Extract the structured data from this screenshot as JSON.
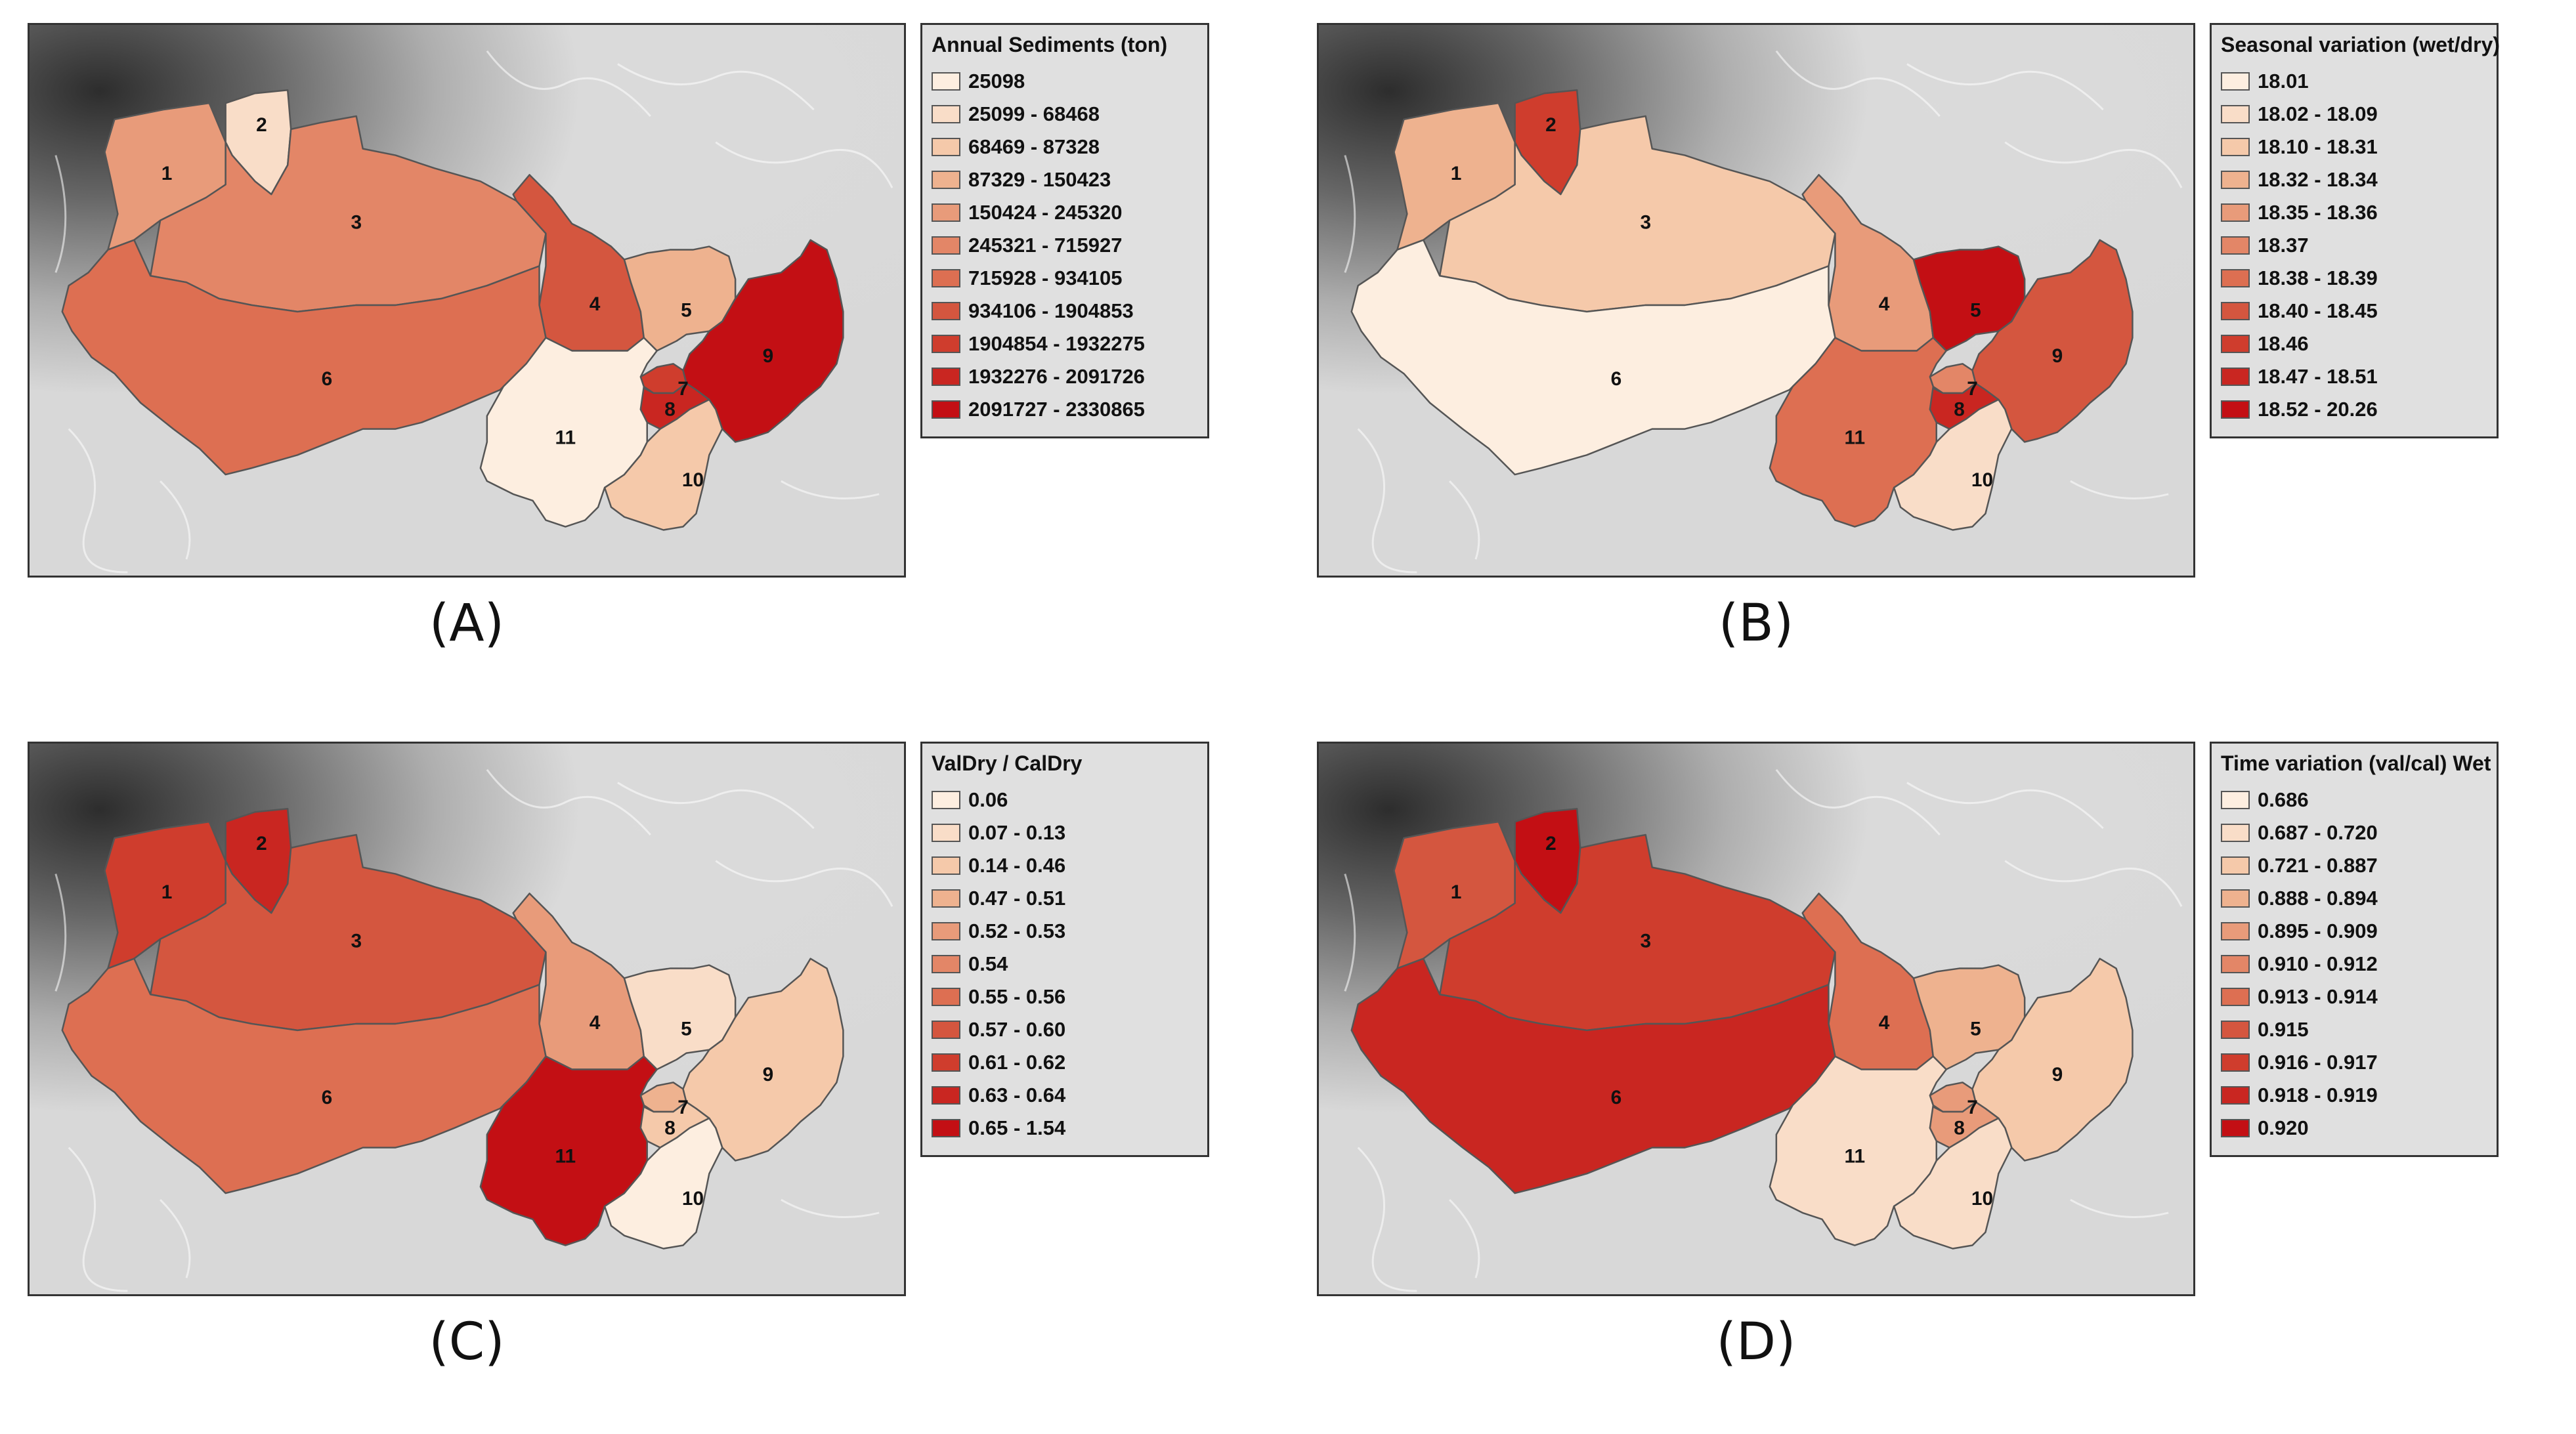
{
  "colors": {
    "c1": "#fdeee0",
    "c2": "#f9ddc8",
    "c3": "#f5c9aa",
    "c4": "#eeb28f",
    "c5": "#e89b7a",
    "c6": "#e38667",
    "c7": "#dd6f52",
    "c8": "#d4563f",
    "c9": "#cf3d2d",
    "c10": "#c92621",
    "c11": "#c30f14"
  },
  "panels": [
    {
      "caption": "(A)",
      "legend_title": "Annual Sediments (ton)",
      "classes": [
        "25098",
        "25099 - 68468",
        "68469 - 87328",
        "87329 - 150423",
        "150424 - 245320",
        "245321 - 715927",
        "715928 - 934105",
        "934106 - 1904853",
        "1904854 - 1932275",
        "1932276 - 2091726",
        "2091727 - 2330865"
      ],
      "basin_classes": {
        "1": 5,
        "2": 2,
        "3": 6,
        "4": 8,
        "5": 4,
        "6": 7,
        "7": 9,
        "8": 10,
        "9": 11,
        "10": 3,
        "11": 1
      }
    },
    {
      "caption": "(B)",
      "legend_title": "Seasonal variation (wet/dry)",
      "classes": [
        "18.01",
        "18.02 - 18.09",
        "18.10 - 18.31",
        "18.32 - 18.34",
        "18.35 - 18.36",
        "18.37",
        "18.38 - 18.39",
        "18.40 - 18.45",
        "18.46",
        "18.47 - 18.51",
        "18.52 - 20.26"
      ],
      "basin_classes": {
        "1": 4,
        "2": 9,
        "3": 3,
        "4": 5,
        "5": 11,
        "6": 1,
        "7": 6,
        "8": 10,
        "9": 8,
        "10": 2,
        "11": 7
      }
    },
    {
      "caption": "(C)",
      "legend_title": "ValDry / CalDry",
      "classes": [
        "0.06",
        "0.07 - 0.13",
        "0.14 - 0.46",
        "0.47 - 0.51",
        "0.52 - 0.53",
        "0.54",
        "0.55 - 0.56",
        "0.57 - 0.60",
        "0.61 - 0.62",
        "0.63 - 0.64",
        "0.65 - 1.54"
      ],
      "basin_classes": {
        "1": 9,
        "2": 10,
        "3": 8,
        "4": 5,
        "5": 2,
        "6": 7,
        "7": 4,
        "8": 3,
        "9": 3,
        "10": 1,
        "11": 11
      }
    },
    {
      "caption": "(D)",
      "legend_title": "Time variation (val/cal) Wet",
      "classes": [
        "0.686",
        "0.687 - 0.720",
        "0.721 - 0.887",
        "0.888 - 0.894",
        "0.895 - 0.909",
        "0.910 - 0.912",
        "0.913 - 0.914",
        "0.915",
        "0.916 - 0.917",
        "0.918 - 0.919",
        "0.920"
      ],
      "basin_classes": {
        "1": 8,
        "2": 11,
        "3": 9,
        "4": 7,
        "5": 4,
        "6": 10,
        "7": 5,
        "8": 5,
        "9": 3,
        "10": 2,
        "11": 2
      }
    }
  ],
  "basin_labels": [
    "1",
    "2",
    "3",
    "4",
    "5",
    "6",
    "7",
    "8",
    "9",
    "10",
    "11"
  ]
}
